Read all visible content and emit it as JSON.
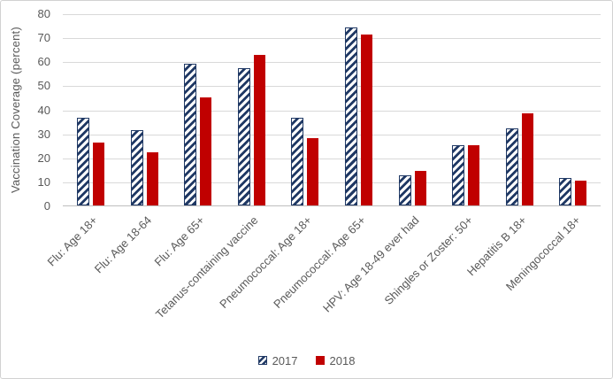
{
  "chart_data": {
    "type": "bar",
    "title": "",
    "ylabel": "Vaccination Coverage (percent)",
    "xlabel": "",
    "ylim": [
      0,
      80
    ],
    "yticks": [
      0,
      10,
      20,
      30,
      40,
      50,
      60,
      70,
      80
    ],
    "grid": true,
    "legend_position": "bottom-center",
    "categories": [
      "Flu: Age 18+",
      "Flu: Age 18-64",
      "Flu: Age 65+",
      "Tetanus-containing vaccine",
      "Pneumococcal: Age 18+",
      "Pneumococcal: Age 65+",
      "HPV: Age 18-49 ever had",
      "Shingles or Zoster: 50+",
      "Hepatitis B 18+",
      "Meningococcal 18+"
    ],
    "series": [
      {
        "name": "2017",
        "fill": "hatched",
        "color": "#1F3864",
        "values": [
          36.5,
          31.5,
          59,
          57,
          36.5,
          74,
          12.5,
          25,
          32,
          11.5
        ]
      },
      {
        "name": "2018",
        "fill": "solid",
        "color": "#C00000",
        "values": [
          26,
          22,
          45,
          62.5,
          28,
          71,
          14.5,
          25,
          38.5,
          10.5
        ]
      }
    ]
  },
  "colors": {
    "series_2017": "#1F3864",
    "series_2018": "#C00000",
    "gridline": "#D9D9D9",
    "axis_line": "#BFBFBF",
    "text": "#595959",
    "frame_border": "#D2D2D2",
    "background": "#FFFFFF"
  }
}
